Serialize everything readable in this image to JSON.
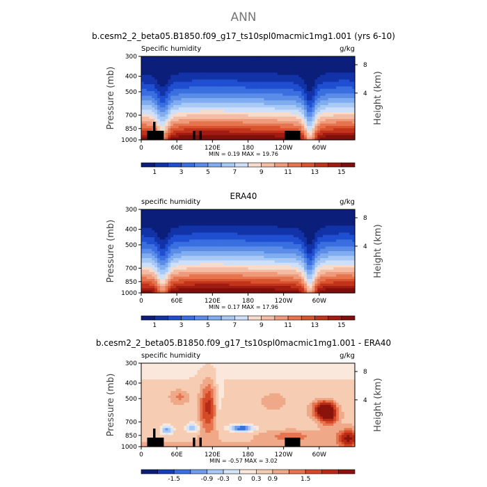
{
  "main_title": "ANN",
  "chart_data": [
    {
      "type": "heatmap",
      "title": "b.cesm2_2_beta05.B1850.f09_g17_ts10spl0macmic1mg1.001 (yrs 6-10)",
      "left_label": "Specific humidity",
      "right_label": "g/kg",
      "ylabel": "Pressure (mb)",
      "y2label": "Height (km)",
      "yticks": [
        "300",
        "400",
        "500",
        "700",
        "850",
        "1000"
      ],
      "y2ticks": [
        "8",
        "4"
      ],
      "xticks": [
        "0",
        "60E",
        "120E",
        "180",
        "120W",
        "60W"
      ],
      "min_max": "MIN =    0.19   MAX =  19.76",
      "field": "humidity",
      "has_topography": true,
      "colorbar_labels": [
        "1",
        "3",
        "5",
        "7",
        "9",
        "11",
        "13",
        "15"
      ],
      "colorbar_colors": [
        "#0b1f7a",
        "#1233a8",
        "#1f4fd0",
        "#3a6fe0",
        "#5a8ce8",
        "#80acf0",
        "#a8c8f6",
        "#cddff9",
        "#f6dccd",
        "#f5bca4",
        "#ef9a7a",
        "#e6754f",
        "#d9532e",
        "#c2331b",
        "#a01c12",
        "#7e0f0a"
      ]
    },
    {
      "type": "heatmap",
      "title": "ERA40",
      "left_label": "specific humidity",
      "right_label": "g/kg",
      "ylabel": "Pressure (mb)",
      "y2label": "Height (km)",
      "yticks": [
        "300",
        "400",
        "500",
        "700",
        "850",
        "1000"
      ],
      "y2ticks": [
        "8",
        "4"
      ],
      "xticks": [
        "0",
        "60E",
        "120E",
        "180",
        "120W",
        "60W"
      ],
      "min_max": "MIN =    0.17   MAX =  17.96",
      "field": "humidity",
      "has_topography": false,
      "colorbar_labels": [
        "1",
        "3",
        "5",
        "7",
        "9",
        "11",
        "13",
        "15"
      ],
      "colorbar_colors": [
        "#0b1f7a",
        "#1233a8",
        "#1f4fd0",
        "#3a6fe0",
        "#5a8ce8",
        "#80acf0",
        "#a8c8f6",
        "#cddff9",
        "#f6dccd",
        "#f5bca4",
        "#ef9a7a",
        "#e6754f",
        "#d9532e",
        "#c2331b",
        "#a01c12",
        "#7e0f0a"
      ]
    },
    {
      "type": "heatmap",
      "title": "b.cesm2_2_beta05.B1850.f09_g17_ts10spl0macmic1mg1.001 - ERA40",
      "left_label": "specific humidity",
      "right_label": "g/kg",
      "ylabel": "Pressure (mb)",
      "y2label": "Height (km)",
      "yticks": [
        "300",
        "400",
        "500",
        "700",
        "850",
        "1000"
      ],
      "y2ticks": [
        "8",
        "4"
      ],
      "xticks": [
        "0",
        "60E",
        "120E",
        "180",
        "120W",
        "60W"
      ],
      "min_max": "MIN =  -0.57   MAX =   3.02",
      "field": "difference",
      "has_topography": true,
      "colorbar_labels": [
        "-1.5",
        "-0.9",
        "-0.3",
        "0",
        "0.3",
        "0.9",
        "1.5"
      ],
      "colorbar_colors": [
        "#0b1f7a",
        "#1640b8",
        "#3a6fe0",
        "#6f9cec",
        "#a8c8f6",
        "#d5e4fa",
        "#fbe8dc",
        "#f6cdb2",
        "#f0a988",
        "#e6754f",
        "#d44a27",
        "#b62a16",
        "#8a130b"
      ]
    }
  ]
}
